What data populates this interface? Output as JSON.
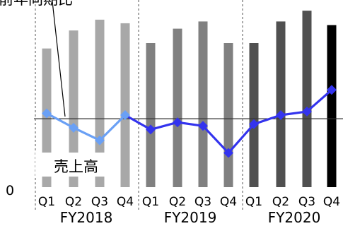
{
  "chart_data": {
    "type": "bar",
    "title": "",
    "xlabel": "",
    "ylabel": "",
    "ylim": [
      0,
      100
    ],
    "zero_label": "0",
    "baseline_y": 38,
    "groups": [
      {
        "label": "FY2018",
        "quarters": [
          "Q1",
          "Q2",
          "Q3",
          "Q4"
        ],
        "bar_color": "#a8a8a8"
      },
      {
        "label": "FY2019",
        "quarters": [
          "Q1",
          "Q2",
          "Q3",
          "Q4"
        ],
        "bar_color": "#808080"
      },
      {
        "label": "FY2020",
        "quarters": [
          "Q1",
          "Q2",
          "Q3",
          "Q4"
        ],
        "bar_color": "#505050"
      }
    ],
    "series": [
      {
        "name": "売上高",
        "kind": "bar",
        "values": [
          77,
          87,
          93,
          91,
          80,
          88,
          92,
          80,
          80,
          92,
          98,
          90
        ],
        "last_bar_color": "#000000"
      },
      {
        "name": "前年同期比",
        "kind": "line",
        "color_fy2018": "#6aa0f5",
        "color_rest": "#3333ee",
        "values": [
          41,
          33,
          26,
          40,
          32,
          36,
          34,
          19,
          35,
          40,
          42,
          54
        ]
      }
    ],
    "annotations": [
      {
        "text": "前年同期比",
        "target": "line"
      },
      {
        "text": "売上高",
        "target": "bars"
      }
    ]
  }
}
